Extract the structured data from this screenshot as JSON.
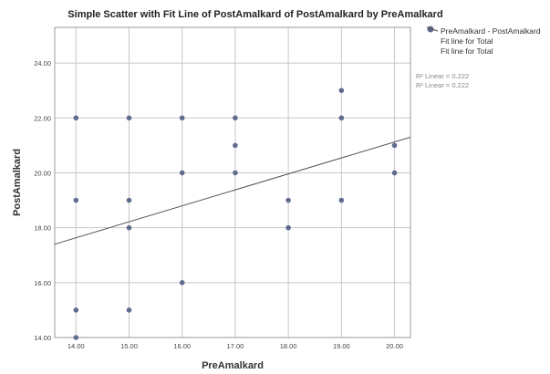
{
  "chart_data": {
    "type": "scatter",
    "title": "Simple Scatter with Fit Line of PostAmalkard  of PostAmalkard by PreAmalkard",
    "xlabel": "PreAmalkard",
    "ylabel": "PostAmalkard",
    "xlim": [
      13.6,
      20.3
    ],
    "ylim": [
      14.0,
      25.3
    ],
    "x_ticks": [
      "14.00",
      "15.00",
      "16.00",
      "17.00",
      "18.00",
      "19.00",
      "20.00"
    ],
    "x_tick_values": [
      14,
      15,
      16,
      17,
      18,
      19,
      20
    ],
    "y_ticks": [
      "14.00",
      "16.00",
      "18.00",
      "20.00",
      "22.00",
      "24.00"
    ],
    "y_tick_values": [
      14,
      16,
      18,
      20,
      22,
      24
    ],
    "grid": true,
    "legend_position": "top-right",
    "points": [
      {
        "x": 14,
        "y": 22
      },
      {
        "x": 14,
        "y": 19
      },
      {
        "x": 14,
        "y": 15
      },
      {
        "x": 14,
        "y": 14
      },
      {
        "x": 15,
        "y": 22
      },
      {
        "x": 15,
        "y": 19
      },
      {
        "x": 15,
        "y": 18
      },
      {
        "x": 15,
        "y": 15
      },
      {
        "x": 16,
        "y": 22
      },
      {
        "x": 16,
        "y": 20
      },
      {
        "x": 16,
        "y": 16
      },
      {
        "x": 17,
        "y": 22
      },
      {
        "x": 17,
        "y": 21
      },
      {
        "x": 17,
        "y": 20
      },
      {
        "x": 18,
        "y": 19
      },
      {
        "x": 18,
        "y": 18
      },
      {
        "x": 19,
        "y": 23
      },
      {
        "x": 19,
        "y": 22
      },
      {
        "x": 19,
        "y": 19
      },
      {
        "x": 20,
        "y": 21
      },
      {
        "x": 20,
        "y": 20
      }
    ],
    "fit_line": {
      "x": [
        13.6,
        20.3
      ],
      "y": [
        17.4,
        21.3
      ]
    },
    "legend": [
      "PreAmalkard - PostAmalkard",
      "Fit line for Total",
      "Fit line for Total"
    ],
    "r_squared_labels": [
      "R² Linear = 0.222",
      "R² Linear = 0.222"
    ],
    "colors": {
      "point": "#5f6b8f",
      "fit_line": "#555555",
      "grid": "#c8c8c8",
      "axis": "#999999"
    }
  }
}
